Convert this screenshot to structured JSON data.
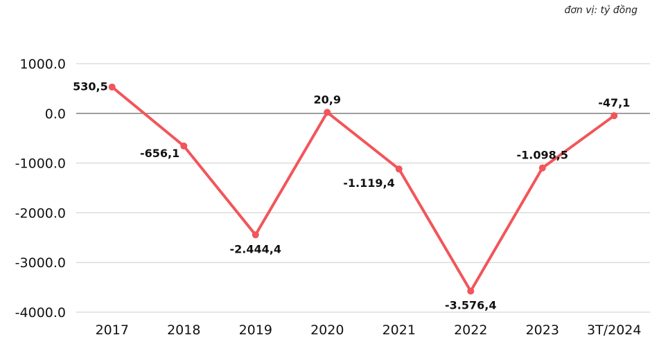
{
  "chart_data": {
    "type": "line",
    "unit_note": "đơn vị: tỷ đồng",
    "categories": [
      "2017",
      "2018",
      "2019",
      "2020",
      "2021",
      "2022",
      "2023",
      "3T/2024"
    ],
    "series": [
      {
        "values": [
          530.5,
          -656.1,
          -2444.4,
          20.9,
          -1119.4,
          -3576.4,
          -1098.5,
          -47.1
        ],
        "labels": [
          "530,5",
          "-656,1",
          "-2.444,4",
          "20,9",
          "-1.119,4",
          "-3.576,4",
          "-1.098,5",
          "-47,1"
        ],
        "color": "#f2555a"
      }
    ],
    "yticks": [
      "1000.0",
      "0.0",
      "-1000.0",
      "-2000.0",
      "-3000.0",
      "-4000.0"
    ],
    "ytick_values": [
      1000,
      0,
      -1000,
      -2000,
      -3000,
      -4000
    ],
    "ylim": [
      -4000,
      1000
    ],
    "grid": true,
    "gridline_color": "#cccccc",
    "zero_line_color": "#555555"
  }
}
